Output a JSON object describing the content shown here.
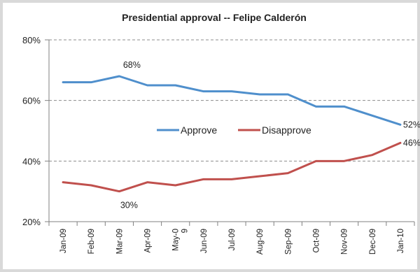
{
  "chart_data": {
    "type": "line",
    "title": "Presidential approval -- Felipe Calderón",
    "xlabel": "",
    "ylabel": "",
    "categories": [
      "Jan-09",
      "Feb-09",
      "Mar-09",
      "Apr-09",
      "May-09",
      "Jun-09",
      "Jul-09",
      "Aug-09",
      "Sep-09",
      "Oct-09",
      "Nov-09",
      "Dec-09",
      "Jan-10"
    ],
    "tick_labels": [
      "Jan-09",
      "Feb-09",
      "Mar-09",
      "Apr-09",
      "May-0\n9",
      "Jun-09",
      "Jul-09",
      "Aug-09",
      "Sep-09",
      "Oct-09",
      "Nov-09",
      "Dec-09",
      "Jan-10"
    ],
    "y_ticks": [
      "20%",
      "40%",
      "60%",
      "80%"
    ],
    "ylim": [
      20,
      80
    ],
    "grid": "horizontal dashed",
    "legend_position": "center",
    "series": [
      {
        "name": "Approve",
        "color": "#4f8fcc",
        "values": [
          66,
          66,
          68,
          65,
          65,
          63,
          63,
          62,
          62,
          58,
          58,
          55,
          52
        ]
      },
      {
        "name": "Disapprove",
        "color": "#c0504d",
        "values": [
          33,
          32,
          30,
          33,
          32,
          34,
          34,
          35,
          36,
          40,
          40,
          42,
          46
        ]
      }
    ],
    "annotations": [
      {
        "series": 0,
        "index": 2,
        "text": "68%"
      },
      {
        "series": 1,
        "index": 2,
        "text": "30%"
      },
      {
        "series": 0,
        "index": 12,
        "text": "52%"
      },
      {
        "series": 1,
        "index": 12,
        "text": "46%"
      }
    ]
  }
}
